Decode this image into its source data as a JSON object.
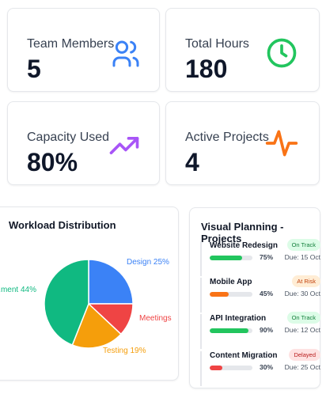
{
  "stats": [
    {
      "label": "Team Members",
      "value": "5",
      "icon": "users-icon",
      "color": "#3b82f6"
    },
    {
      "label": "Total Hours",
      "value": "180",
      "icon": "clock-icon",
      "color": "#22c55e"
    },
    {
      "label": "Capacity Used",
      "value": "80%",
      "icon": "trending-up-icon",
      "color": "#a855f7"
    },
    {
      "label": "Active Projects",
      "value": "4",
      "icon": "activity-icon",
      "color": "#f97316"
    }
  ],
  "workload": {
    "title": "Workload Distribution"
  },
  "chart_data": {
    "type": "pie",
    "title": "Workload Distribution",
    "slices": [
      {
        "label": "Design 25%",
        "value": 25,
        "color": "#3b82f6"
      },
      {
        "label": "Meetings",
        "value": 12,
        "color": "#ef4444"
      },
      {
        "label": "Testing 19%",
        "value": 19,
        "color": "#f59e0b"
      },
      {
        "label": "...ment 44%",
        "value": 44,
        "color": "#10b981"
      }
    ]
  },
  "planning": {
    "title": "Visual Planning - Projects",
    "projects": [
      {
        "name": "Website Redesign",
        "status": "On Track",
        "progress_pct": 75,
        "progress": "75%",
        "due": "Due: 15 Oct",
        "bar_color": "#22c55e",
        "badge_bg": "#dcfce7",
        "badge_fg": "#15803d"
      },
      {
        "name": "Mobile App",
        "status": "At Risk",
        "progress_pct": 45,
        "progress": "45%",
        "due": "Due: 30 Oct",
        "bar_color": "#f97316",
        "badge_bg": "#ffedd5",
        "badge_fg": "#c2410c"
      },
      {
        "name": "API Integration",
        "status": "On Track",
        "progress_pct": 90,
        "progress": "90%",
        "due": "Due: 12 Oct",
        "bar_color": "#22c55e",
        "badge_bg": "#dcfce7",
        "badge_fg": "#15803d"
      },
      {
        "name": "Content Migration",
        "status": "Delayed",
        "progress_pct": 30,
        "progress": "30%",
        "due": "Due: 25 Oct",
        "bar_color": "#ef4444",
        "badge_bg": "#fee2e2",
        "badge_fg": "#b91c1c"
      }
    ]
  }
}
